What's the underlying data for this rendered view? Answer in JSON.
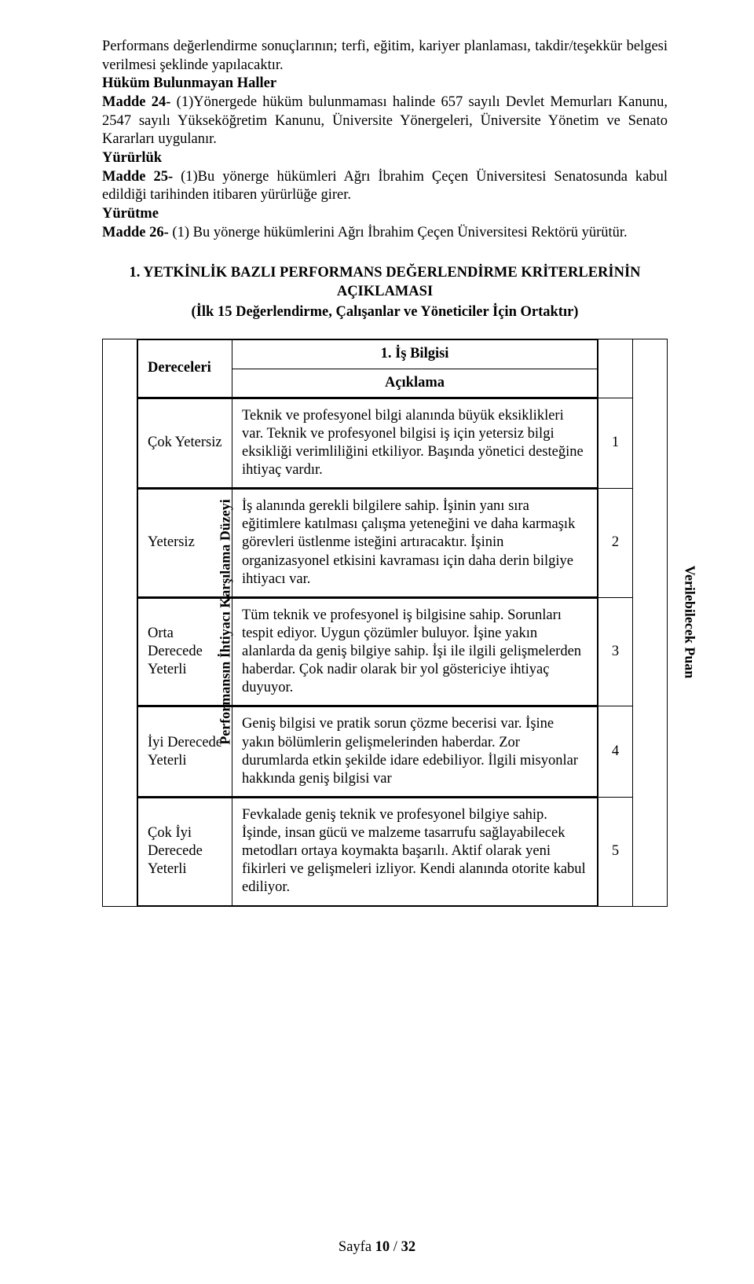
{
  "intro": {
    "p1": "Performans değerlendirme sonuçlarının; terfi, eğitim, kariyer planlaması, takdir/teşekkür belgesi verilmesi şeklinde yapılacaktır.",
    "h1": "Hüküm Bulunmayan Haller",
    "m24_label": "Madde 24- ",
    "m24_body": "(1)Yönergede hüküm bulunmaması halinde 657 sayılı Devlet Memurları Kanunu, 2547 sayılı Yükseköğretim Kanunu, Üniversite Yönergeleri, Üniversite Yönetim ve Senato Kararları uygulanır.",
    "h2": "Yürürlük",
    "m25_label": "Madde 25- ",
    "m25_body": "(1)Bu yönerge hükümleri Ağrı İbrahim Çeçen Üniversitesi Senatosunda kabul edildiği tarihinden itibaren yürürlüğe girer.",
    "h3": "Yürütme",
    "m26_label": "Madde 26- ",
    "m26_body": "(1) Bu yönerge hükümlerini Ağrı İbrahim Çeçen Üniversitesi Rektörü yürütür."
  },
  "section": {
    "title": "1. YETKİNLİK BAZLI PERFORMANS DEĞERLENDİRME KRİTERLERİNİN AÇIKLAMASI",
    "subtitle": "(İlk 15 Değerlendirme, Çalışanlar ve Yöneticiler İçin Ortaktır)"
  },
  "table": {
    "left_label": "Performansın İhtiyacı Karşılama Düzeyi",
    "right_label": "Verilebilecek Puan",
    "header_topic": "1. İş Bilgisi",
    "col_level": "Dereceleri",
    "col_desc": "Açıklama",
    "rows": [
      {
        "level": "Çok Yetersiz",
        "desc": "Teknik ve profesyonel bilgi alanında büyük eksiklikleri var. Teknik ve profesyonel bilgisi iş için yetersiz bilgi eksikliği verimliliğini etkiliyor. Başında yönetici desteğine ihtiyaç vardır.",
        "score": "1"
      },
      {
        "level": "Yetersiz",
        "desc": "İş alanında gerekli bilgilere sahip. İşinin yanı sıra eğitimlere katılması çalışma yeteneğini ve daha karmaşık görevleri üstlenme isteğini artıracaktır. İşinin organizasyonel etkisini kavraması için daha derin bilgiye ihtiyacı var.",
        "score": "2"
      },
      {
        "level": "Orta Derecede Yeterli",
        "desc": "Tüm teknik ve profesyonel iş bilgisine sahip. Sorunları tespit ediyor. Uygun çözümler buluyor. İşine yakın alanlarda da geniş bilgiye sahip. İşi ile ilgili gelişmelerden haberdar. Çok nadir olarak bir yol göstericiye ihtiyaç duyuyor.",
        "score": "3"
      },
      {
        "level": "İyi Derecede Yeterli",
        "desc": "Geniş bilgisi ve pratik sorun çözme becerisi var. İşine yakın bölümlerin gelişmelerinden haberdar. Zor durumlarda etkin şekilde idare edebiliyor. İlgili misyonlar hakkında geniş bilgisi var",
        "score": "4"
      },
      {
        "level": "Çok İyi Derecede Yeterli",
        "desc": "Fevkalade geniş teknik ve profesyonel bilgiye sahip. İşinde, insan gücü ve malzeme tasarrufu sağlayabilecek metodları ortaya koymakta başarılı. Aktif olarak yeni fikirleri ve gelişmeleri izliyor. Kendi alanında otorite kabul ediliyor.",
        "score": "5"
      }
    ]
  },
  "footer": {
    "prefix": "Sayfa ",
    "page": "10",
    "sep": " / ",
    "total": "32"
  }
}
